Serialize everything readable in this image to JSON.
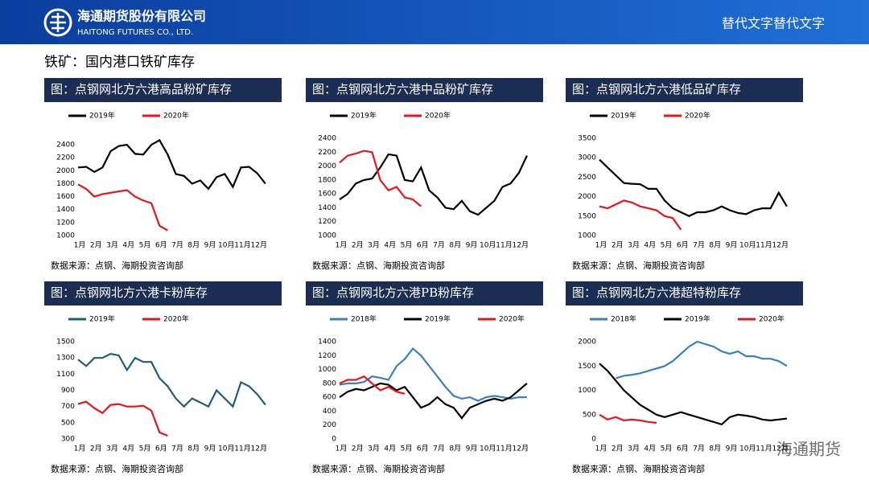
{
  "header": {
    "company_cn": "海通期货股份有限公司",
    "company_en": "HAITONG FUTURES CO., LTD.",
    "right_text": "替代文字替代文字"
  },
  "section_title": "铁矿：国内港口铁矿库存",
  "watermark": "海通期货",
  "chart_data": [
    {
      "type": "line",
      "title": "图：点钢网北方六港高品粉矿库存",
      "source": "数据来源：点钢、海期投资咨询部",
      "x": [
        1,
        1.5,
        2,
        2.5,
        3,
        3.5,
        4,
        4.5,
        5,
        5.5,
        6,
        6.5,
        7,
        7.5,
        8,
        8.5,
        9,
        9.5,
        10,
        10.5,
        11,
        11.5,
        12,
        12.5
      ],
      "xlim": [
        1,
        13
      ],
      "xticks": [
        {
          "value": 1,
          "label": "1月"
        },
        {
          "value": 2,
          "label": "2月"
        },
        {
          "value": 3,
          "label": "3月"
        },
        {
          "value": 4,
          "label": "4月"
        },
        {
          "value": 5,
          "label": "5月"
        },
        {
          "value": 6,
          "label": "6月"
        },
        {
          "value": 7,
          "label": "7月"
        },
        {
          "value": 8,
          "label": "8月"
        },
        {
          "value": 9,
          "label": "9月"
        },
        {
          "value": 10,
          "label": "10月"
        },
        {
          "value": 11,
          "label": "11月"
        },
        {
          "value": 12,
          "label": "12月"
        }
      ],
      "ylim": [
        1000,
        2500
      ],
      "yticks": [
        1000,
        1200,
        1400,
        1600,
        1800,
        2000,
        2200,
        2400
      ],
      "series": [
        {
          "name": "2019年",
          "color": "#000000",
          "values": [
            2050,
            2060,
            1980,
            2050,
            2300,
            2380,
            2400,
            2260,
            2250,
            2400,
            2470,
            2250,
            1950,
            1920,
            1800,
            1850,
            1720,
            1900,
            1950,
            1750,
            2050,
            2060,
            1960,
            1800
          ]
        },
        {
          "name": "2020年",
          "color": "#e8141b",
          "values": [
            1790,
            1720,
            1600,
            1640,
            1660,
            1680,
            1700,
            1600,
            1540,
            1500,
            1150,
            1080,
            null,
            null,
            null,
            null,
            null,
            null,
            null,
            null,
            null,
            null,
            null,
            null
          ]
        }
      ]
    },
    {
      "type": "line",
      "title": "图：点钢网北方六港中品粉矿库存",
      "source": "数据来源：点钢、海期投资咨询部",
      "x": [
        1,
        1.5,
        2,
        2.5,
        3,
        3.5,
        4,
        4.5,
        5,
        5.5,
        6,
        6.5,
        7,
        7.5,
        8,
        8.5,
        9,
        9.5,
        10,
        10.5,
        11,
        11.5,
        12,
        12.5
      ],
      "xlim": [
        1,
        13
      ],
      "xticks": [
        {
          "value": 1,
          "label": "1月"
        },
        {
          "value": 2,
          "label": "2月"
        },
        {
          "value": 3,
          "label": "3月"
        },
        {
          "value": 4,
          "label": "4月"
        },
        {
          "value": 5,
          "label": "5月"
        },
        {
          "value": 6,
          "label": "6月"
        },
        {
          "value": 7,
          "label": "7月"
        },
        {
          "value": 8,
          "label": "8月"
        },
        {
          "value": 9,
          "label": "9月"
        },
        {
          "value": 10,
          "label": "10月"
        },
        {
          "value": 11,
          "label": "11月"
        },
        {
          "value": 12,
          "label": "12月"
        }
      ],
      "ylim": [
        1000,
        2400
      ],
      "yticks": [
        1000,
        1200,
        1400,
        1600,
        1800,
        2000,
        2200,
        2400
      ],
      "series": [
        {
          "name": "2019年",
          "color": "#000000",
          "values": [
            1520,
            1600,
            1750,
            1800,
            1820,
            1980,
            2170,
            2150,
            1800,
            1780,
            1980,
            1650,
            1550,
            1400,
            1380,
            1500,
            1350,
            1300,
            1400,
            1500,
            1700,
            1750,
            1900,
            2150
          ]
        },
        {
          "name": "2020年",
          "color": "#e8141b",
          "values": [
            2050,
            2150,
            2180,
            2220,
            2200,
            1800,
            1650,
            1700,
            1550,
            1520,
            1420,
            null,
            null,
            null,
            null,
            null,
            null,
            null,
            null,
            null,
            null,
            null,
            null,
            null
          ]
        }
      ]
    },
    {
      "type": "line",
      "title": "图：点钢网北方六港低品矿库存",
      "source": "数据来源：点钢、海期投资咨询部",
      "x": [
        1,
        1.5,
        2,
        2.5,
        3,
        3.5,
        4,
        4.5,
        5,
        5.5,
        6,
        6.5,
        7,
        7.5,
        8,
        8.5,
        9,
        9.5,
        10,
        10.5,
        11,
        11.5,
        12,
        12.5
      ],
      "xlim": [
        1,
        13
      ],
      "xticks": [
        {
          "value": 1,
          "label": "1月"
        },
        {
          "value": 2,
          "label": "2月"
        },
        {
          "value": 3,
          "label": "3月"
        },
        {
          "value": 4,
          "label": "4月"
        },
        {
          "value": 5,
          "label": "5月"
        },
        {
          "value": 6,
          "label": "6月"
        },
        {
          "value": 7,
          "label": "7月"
        },
        {
          "value": 8,
          "label": "8月"
        },
        {
          "value": 9,
          "label": "9月"
        },
        {
          "value": 10,
          "label": "10月"
        },
        {
          "value": 11,
          "label": "11月"
        },
        {
          "value": 12,
          "label": "12月"
        }
      ],
      "ylim": [
        1000,
        3500
      ],
      "yticks": [
        1000,
        1500,
        2000,
        2500,
        3000,
        3500
      ],
      "series": [
        {
          "name": "2019年",
          "color": "#000000",
          "values": [
            2950,
            2750,
            2550,
            2350,
            2330,
            2320,
            2200,
            2200,
            1900,
            1700,
            1600,
            1500,
            1600,
            1600,
            1650,
            1750,
            1650,
            1580,
            1550,
            1650,
            1700,
            1700,
            2100,
            1750
          ]
        },
        {
          "name": "2020年",
          "color": "#e8141b",
          "values": [
            1750,
            1700,
            1800,
            1900,
            1850,
            1750,
            1700,
            1650,
            1500,
            1450,
            1150,
            null,
            null,
            null,
            null,
            null,
            null,
            null,
            null,
            null,
            null,
            null,
            null,
            null
          ]
        }
      ]
    },
    {
      "type": "line",
      "title": "图：点钢网北方六港卡粉库存",
      "source": "数据来源：点钢、海期投资咨询部",
      "x": [
        1,
        1.5,
        2,
        2.5,
        3,
        3.5,
        4,
        4.5,
        5,
        5.5,
        6,
        6.5,
        7,
        7.5,
        8,
        8.5,
        9,
        9.5,
        10,
        10.5,
        11,
        11.5,
        12,
        12.5
      ],
      "xlim": [
        1,
        13
      ],
      "xticks": [
        {
          "value": 1,
          "label": "1月"
        },
        {
          "value": 2,
          "label": "2月"
        },
        {
          "value": 3,
          "label": "3月"
        },
        {
          "value": 4,
          "label": "4月"
        },
        {
          "value": 5,
          "label": "5月"
        },
        {
          "value": 6,
          "label": "6月"
        },
        {
          "value": 7,
          "label": "7月"
        },
        {
          "value": 8,
          "label": "8月"
        },
        {
          "value": 9,
          "label": "9月"
        },
        {
          "value": 10,
          "label": "10月"
        },
        {
          "value": 11,
          "label": "11月"
        },
        {
          "value": 12,
          "label": "12月"
        }
      ],
      "ylim": [
        300,
        1500
      ],
      "yticks": [
        300,
        500,
        700,
        900,
        1100,
        1300,
        1500
      ],
      "series": [
        {
          "name": "2019年",
          "color": "#1f5c7a",
          "values": [
            1280,
            1200,
            1300,
            1300,
            1350,
            1330,
            1150,
            1300,
            1250,
            1250,
            1050,
            950,
            800,
            700,
            800,
            750,
            700,
            900,
            800,
            700,
            1000,
            950,
            850,
            720
          ]
        },
        {
          "name": "2020年",
          "color": "#e8141b",
          "values": [
            730,
            760,
            680,
            620,
            720,
            730,
            700,
            700,
            710,
            650,
            380,
            340,
            null,
            null,
            null,
            null,
            null,
            null,
            null,
            null,
            null,
            null,
            null,
            null
          ]
        }
      ]
    },
    {
      "type": "line",
      "title": "图：点钢网北方六港PB粉库存",
      "source": "数据来源：点钢、海期投资咨询部",
      "x": [
        1,
        1.5,
        2,
        2.5,
        3,
        3.5,
        4,
        4.5,
        5,
        5.5,
        6,
        6.5,
        7,
        7.5,
        8,
        8.5,
        9,
        9.5,
        10,
        10.5,
        11,
        11.5,
        12,
        12.5
      ],
      "xlim": [
        1,
        13
      ],
      "xticks": [
        {
          "value": 1,
          "label": "1月"
        },
        {
          "value": 2,
          "label": "2月"
        },
        {
          "value": 3,
          "label": "3月"
        },
        {
          "value": 4,
          "label": "4月"
        },
        {
          "value": 5,
          "label": "5月"
        },
        {
          "value": 6,
          "label": "6月"
        },
        {
          "value": 7,
          "label": "7月"
        },
        {
          "value": 8,
          "label": "8月"
        },
        {
          "value": 9,
          "label": "9月"
        },
        {
          "value": 10,
          "label": "10月"
        },
        {
          "value": 11,
          "label": "11月"
        },
        {
          "value": 12,
          "label": "12月"
        }
      ],
      "ylim": [
        0,
        1400
      ],
      "yticks": [
        0,
        200,
        400,
        600,
        800,
        1000,
        1200,
        1400
      ],
      "series": [
        {
          "name": "2018年",
          "color": "#3a7fc4",
          "values": [
            780,
            800,
            800,
            820,
            900,
            880,
            850,
            1050,
            1150,
            1300,
            1200,
            1050,
            900,
            750,
            620,
            580,
            600,
            550,
            600,
            620,
            600,
            580,
            600,
            600
          ]
        },
        {
          "name": "2019年",
          "color": "#000000",
          "values": [
            600,
            680,
            720,
            700,
            750,
            800,
            780,
            700,
            750,
            600,
            450,
            500,
            600,
            500,
            450,
            300,
            450,
            500,
            550,
            580,
            550,
            600,
            700,
            800
          ]
        },
        {
          "name": "2020年",
          "color": "#e8141b",
          "values": [
            800,
            850,
            850,
            900,
            800,
            700,
            750,
            680,
            650,
            null,
            null,
            null,
            null,
            null,
            null,
            null,
            null,
            null,
            null,
            null,
            null,
            null,
            null,
            null
          ]
        }
      ]
    },
    {
      "type": "line",
      "title": "图：点钢网北方六港超特粉库存",
      "source": "数据来源：点钢、海期投资咨询部",
      "x": [
        1,
        1.5,
        2,
        2.5,
        3,
        3.5,
        4,
        4.5,
        5,
        5.5,
        6,
        6.5,
        7,
        7.5,
        8,
        8.5,
        9,
        9.5,
        10,
        10.5,
        11,
        11.5,
        12,
        12.5
      ],
      "xlim": [
        1,
        13
      ],
      "xticks": [
        {
          "value": 1,
          "label": "1月"
        },
        {
          "value": 2,
          "label": "2月"
        },
        {
          "value": 3,
          "label": "3月"
        },
        {
          "value": 4,
          "label": "4月"
        },
        {
          "value": 5,
          "label": "5月"
        },
        {
          "value": 6,
          "label": "6月"
        },
        {
          "value": 7,
          "label": "7月"
        },
        {
          "value": 8,
          "label": "8月"
        },
        {
          "value": 9,
          "label": "9月"
        },
        {
          "value": 10,
          "label": "10月"
        },
        {
          "value": 11,
          "label": "11月"
        },
        {
          "value": 12,
          "label": "12月"
        }
      ],
      "ylim": [
        0,
        2000
      ],
      "yticks": [
        0,
        500,
        1000,
        1500,
        2000
      ],
      "series": [
        {
          "name": "2018年",
          "color": "#3a7fc4",
          "values": [
            null,
            null,
            1250,
            1300,
            1320,
            1350,
            1400,
            1450,
            1500,
            1600,
            1750,
            1900,
            2000,
            1950,
            1900,
            1800,
            1750,
            1800,
            1700,
            1700,
            1650,
            1650,
            1600,
            1500
          ]
        },
        {
          "name": "2019年",
          "color": "#000000",
          "values": [
            1550,
            1400,
            1200,
            1000,
            850,
            700,
            600,
            500,
            450,
            500,
            550,
            500,
            450,
            400,
            350,
            300,
            450,
            500,
            480,
            450,
            400,
            380,
            400,
            420
          ]
        },
        {
          "name": "2020年",
          "color": "#e8141b",
          "values": [
            500,
            400,
            450,
            380,
            400,
            380,
            350,
            330,
            null,
            null,
            null,
            null,
            null,
            null,
            null,
            null,
            null,
            null,
            null,
            null,
            null,
            null,
            null,
            null
          ]
        }
      ]
    }
  ]
}
